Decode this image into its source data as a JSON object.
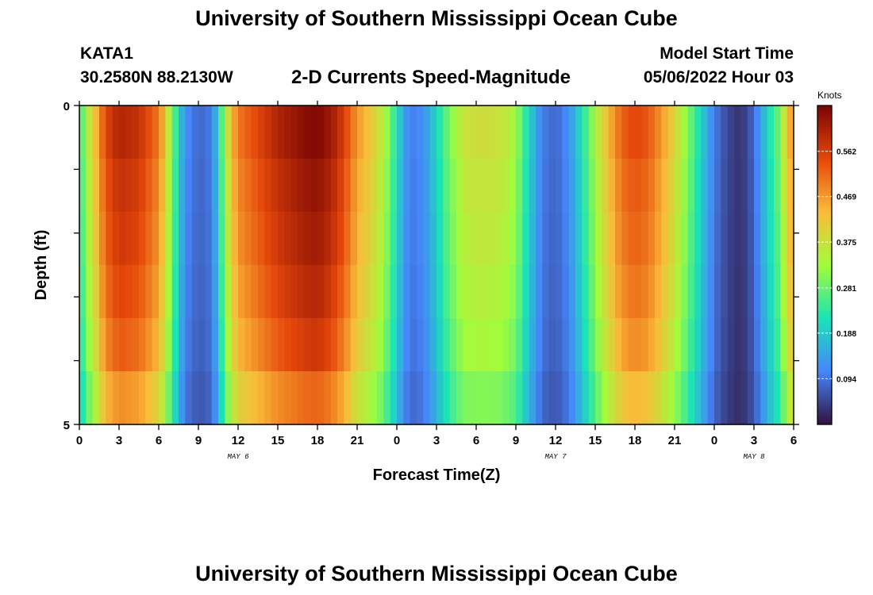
{
  "page_title": "University of Southern Mississippi Ocean Cube",
  "footer_title": "University of Southern Mississippi Ocean Cube",
  "station": {
    "id": "KATA1",
    "coords": "30.2580N  88.2130W"
  },
  "model_start": {
    "label": "Model Start Time",
    "value": "05/06/2022 Hour 03"
  },
  "colors": {
    "colormap": [
      "#30123b",
      "#4686fb",
      "#1ae4b6",
      "#a2fc3c",
      "#fabb39",
      "#e4460a",
      "#7a0403"
    ]
  },
  "chart_data": {
    "type": "heatmap",
    "title": "2-D Currents Speed-Magnitude",
    "xlabel": "Forecast Time(Z)",
    "ylabel": "Depth (ft)",
    "x_tick_labels": [
      "0",
      "3",
      "6",
      "9",
      "12",
      "15",
      "18",
      "21",
      "0",
      "3",
      "6",
      "9",
      "12",
      "15",
      "18",
      "21",
      "0",
      "3",
      "6"
    ],
    "x_day_labels": [
      {
        "label": "MAY 6",
        "at_hour": 12
      },
      {
        "label": "MAY 7",
        "at_hour": 36
      },
      {
        "label": "MAY 8",
        "at_hour": 51
      }
    ],
    "xlim_hours": [
      0,
      54
    ],
    "y_tick_labels": [
      "0",
      "5"
    ],
    "ylim": [
      0,
      5
    ],
    "depth_levels": 5,
    "colorbar": {
      "title": "Knots",
      "tick_labels": [
        "0.562",
        "0.469",
        "0.375",
        "0.281",
        "0.188",
        "0.094"
      ],
      "tick_values": [
        0.562,
        0.469,
        0.375,
        0.281,
        0.188,
        0.094
      ],
      "range": [
        0,
        0.656
      ]
    },
    "surface_speed_knots": {
      "hours": [
        0,
        0.5,
        1,
        1.5,
        2,
        3,
        4.5,
        6,
        6.5,
        7,
        7.5,
        8,
        9,
        10,
        10.5,
        11,
        11.5,
        12,
        15,
        17,
        18,
        19,
        20,
        21,
        22,
        23,
        24,
        24.5,
        25,
        26,
        27,
        28,
        29,
        30,
        31,
        32,
        33,
        34,
        35,
        36,
        37,
        38,
        39,
        40,
        41,
        42,
        43,
        44,
        45,
        46,
        47,
        48,
        49,
        50,
        51,
        52,
        53,
        53.5,
        54
      ],
      "values": [
        0.23,
        0.33,
        0.4,
        0.48,
        0.55,
        0.6,
        0.58,
        0.5,
        0.42,
        0.3,
        0.2,
        0.12,
        0.08,
        0.1,
        0.2,
        0.33,
        0.43,
        0.5,
        0.6,
        0.64,
        0.65,
        0.62,
        0.56,
        0.47,
        0.42,
        0.35,
        0.22,
        0.15,
        0.1,
        0.12,
        0.2,
        0.3,
        0.37,
        0.38,
        0.38,
        0.37,
        0.33,
        0.2,
        0.1,
        0.08,
        0.12,
        0.22,
        0.33,
        0.44,
        0.52,
        0.55,
        0.53,
        0.47,
        0.4,
        0.3,
        0.2,
        0.1,
        0.05,
        0.03,
        0.08,
        0.2,
        0.3,
        0.42,
        0.48
      ]
    },
    "depth_factor": [
      1.0,
      0.97,
      0.95,
      0.92,
      0.88,
      0.8
    ]
  }
}
